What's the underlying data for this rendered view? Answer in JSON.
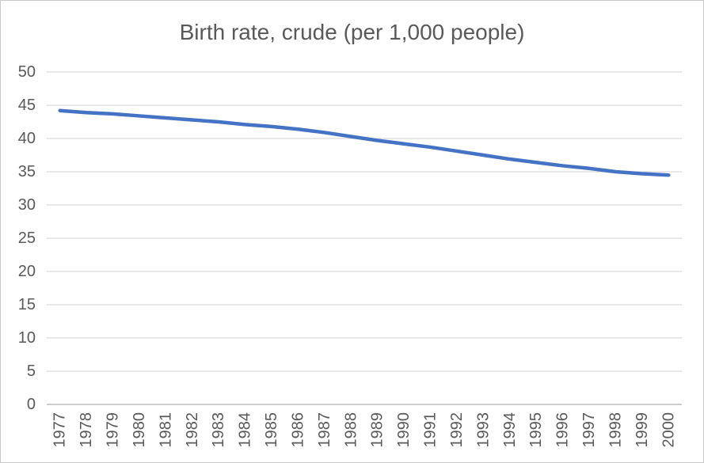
{
  "window": {
    "background": "#FFFFFF",
    "border_color": "#C9C9C9"
  },
  "chart_data": {
    "type": "line",
    "title": "Birth rate, crude (per 1,000 people)",
    "x": [
      "1977",
      "1978",
      "1979",
      "1980",
      "1981",
      "1982",
      "1983",
      "1984",
      "1985",
      "1986",
      "1987",
      "1988",
      "1989",
      "1990",
      "1991",
      "1992",
      "1993",
      "1994",
      "1995",
      "1996",
      "1997",
      "1998",
      "1999",
      "2000"
    ],
    "values": [
      44.2,
      43.9,
      43.7,
      43.4,
      43.1,
      42.8,
      42.5,
      42.1,
      41.8,
      41.4,
      40.9,
      40.3,
      39.7,
      39.2,
      38.7,
      38.1,
      37.5,
      36.9,
      36.4,
      35.9,
      35.5,
      35.0,
      34.7,
      34.5
    ],
    "xlabel": "",
    "ylabel": "",
    "ylim": [
      0,
      50
    ],
    "yticks": [
      0,
      5,
      10,
      15,
      20,
      25,
      30,
      35,
      40,
      45,
      50
    ],
    "grid": true,
    "legend_position": "none",
    "x_label_rotation_deg": -90,
    "colors": {
      "line": "#4472C4",
      "gridline": "#D9D9D9",
      "axis_line": "#BFBFBF",
      "text": "#595959"
    }
  }
}
